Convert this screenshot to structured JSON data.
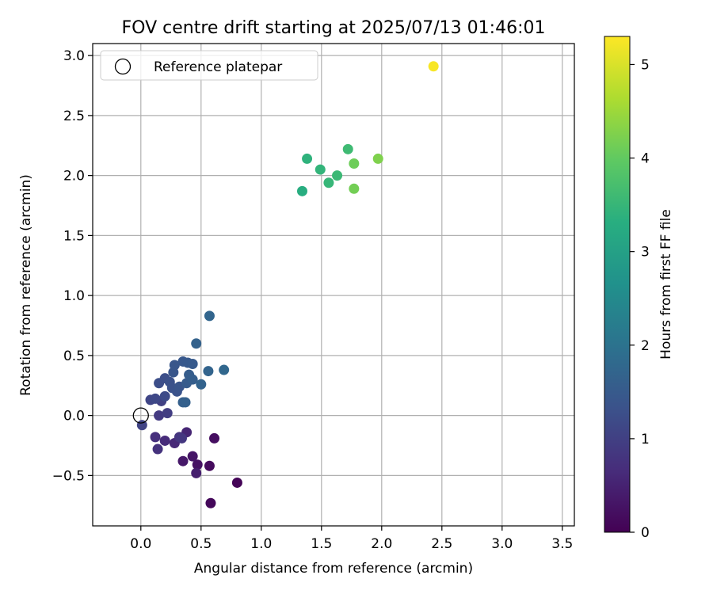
{
  "chart_data": {
    "type": "scatter",
    "title": "FOV centre drift starting at 2025/07/13 01:46:01",
    "xlabel": "Angular distance from reference (arcmin)",
    "ylabel": "Rotation from reference (arcmin)",
    "xlim": [
      -0.4,
      3.6
    ],
    "ylim": [
      -0.92,
      3.1
    ],
    "xticks": [
      "0.0",
      "0.5",
      "1.0",
      "1.5",
      "2.0",
      "2.5",
      "3.0",
      "3.5"
    ],
    "yticks": [
      "−0.5",
      "0.0",
      "0.5",
      "1.0",
      "1.5",
      "2.0",
      "2.5",
      "3.0"
    ],
    "grid": true,
    "legend_position": "top-left",
    "reference": {
      "name": "Reference platepar",
      "x": 0.0,
      "y": 0.0
    },
    "colorbar": {
      "label": "Hours from first FF file",
      "range": [
        0,
        5.3
      ],
      "ticks": [
        "0",
        "1",
        "2",
        "3",
        "4",
        "5"
      ],
      "colormap": "viridis"
    },
    "series": [
      {
        "color_by": "hours",
        "points": [
          {
            "x": 0.8,
            "y": -0.56,
            "h": 0.05
          },
          {
            "x": 0.58,
            "y": -0.73,
            "h": 0.1
          },
          {
            "x": 0.57,
            "y": -0.42,
            "h": 0.15
          },
          {
            "x": 0.61,
            "y": -0.19,
            "h": 0.2
          },
          {
            "x": 0.47,
            "y": -0.41,
            "h": 0.25
          },
          {
            "x": 0.43,
            "y": -0.34,
            "h": 0.3
          },
          {
            "x": 0.35,
            "y": -0.38,
            "h": 0.35
          },
          {
            "x": 0.46,
            "y": -0.48,
            "h": 0.45
          },
          {
            "x": 0.38,
            "y": -0.14,
            "h": 0.55
          },
          {
            "x": 0.28,
            "y": -0.23,
            "h": 0.6
          },
          {
            "x": 0.2,
            "y": -0.21,
            "h": 0.65
          },
          {
            "x": 0.12,
            "y": -0.18,
            "h": 0.7
          },
          {
            "x": 0.14,
            "y": -0.28,
            "h": 0.75
          },
          {
            "x": 0.32,
            "y": -0.18,
            "h": 0.8
          },
          {
            "x": 0.34,
            "y": -0.19,
            "h": 0.85
          },
          {
            "x": 0.15,
            "y": 0.0,
            "h": 0.9
          },
          {
            "x": 0.22,
            "y": 0.02,
            "h": 0.95
          },
          {
            "x": 0.17,
            "y": 0.12,
            "h": 1.0
          },
          {
            "x": 0.01,
            "y": -0.08,
            "h": 1.05
          },
          {
            "x": 0.08,
            "y": 0.13,
            "h": 1.1
          },
          {
            "x": 0.12,
            "y": 0.14,
            "h": 1.15
          },
          {
            "x": 0.2,
            "y": 0.16,
            "h": 1.2
          },
          {
            "x": 0.15,
            "y": 0.27,
            "h": 1.25
          },
          {
            "x": 0.2,
            "y": 0.31,
            "h": 1.28
          },
          {
            "x": 0.24,
            "y": 0.28,
            "h": 1.3
          },
          {
            "x": 0.26,
            "y": 0.23,
            "h": 1.32
          },
          {
            "x": 0.3,
            "y": 0.2,
            "h": 1.35
          },
          {
            "x": 0.32,
            "y": 0.24,
            "h": 1.38
          },
          {
            "x": 0.27,
            "y": 0.36,
            "h": 1.4
          },
          {
            "x": 0.28,
            "y": 0.42,
            "h": 1.42
          },
          {
            "x": 0.35,
            "y": 0.45,
            "h": 1.45
          },
          {
            "x": 0.39,
            "y": 0.44,
            "h": 1.48
          },
          {
            "x": 0.43,
            "y": 0.43,
            "h": 1.5
          },
          {
            "x": 0.38,
            "y": 0.27,
            "h": 1.52
          },
          {
            "x": 0.4,
            "y": 0.34,
            "h": 1.55
          },
          {
            "x": 0.43,
            "y": 0.3,
            "h": 1.58
          },
          {
            "x": 0.35,
            "y": 0.11,
            "h": 1.6
          },
          {
            "x": 0.37,
            "y": 0.11,
            "h": 1.62
          },
          {
            "x": 0.46,
            "y": 0.6,
            "h": 1.65
          },
          {
            "x": 0.5,
            "y": 0.26,
            "h": 1.68
          },
          {
            "x": 0.56,
            "y": 0.37,
            "h": 1.7
          },
          {
            "x": 0.57,
            "y": 0.83,
            "h": 1.72
          },
          {
            "x": 0.69,
            "y": 0.38,
            "h": 1.75
          },
          {
            "x": 1.34,
            "y": 1.87,
            "h": 3.3
          },
          {
            "x": 1.38,
            "y": 2.14,
            "h": 3.4
          },
          {
            "x": 1.49,
            "y": 2.05,
            "h": 3.45
          },
          {
            "x": 1.56,
            "y": 1.94,
            "h": 3.5
          },
          {
            "x": 1.63,
            "y": 2.0,
            "h": 3.55
          },
          {
            "x": 1.72,
            "y": 2.22,
            "h": 3.6
          },
          {
            "x": 1.77,
            "y": 2.1,
            "h": 4.1
          },
          {
            "x": 1.77,
            "y": 1.89,
            "h": 4.15
          },
          {
            "x": 1.97,
            "y": 2.14,
            "h": 4.25
          },
          {
            "x": 2.43,
            "y": 2.91,
            "h": 5.25
          }
        ]
      }
    ]
  }
}
